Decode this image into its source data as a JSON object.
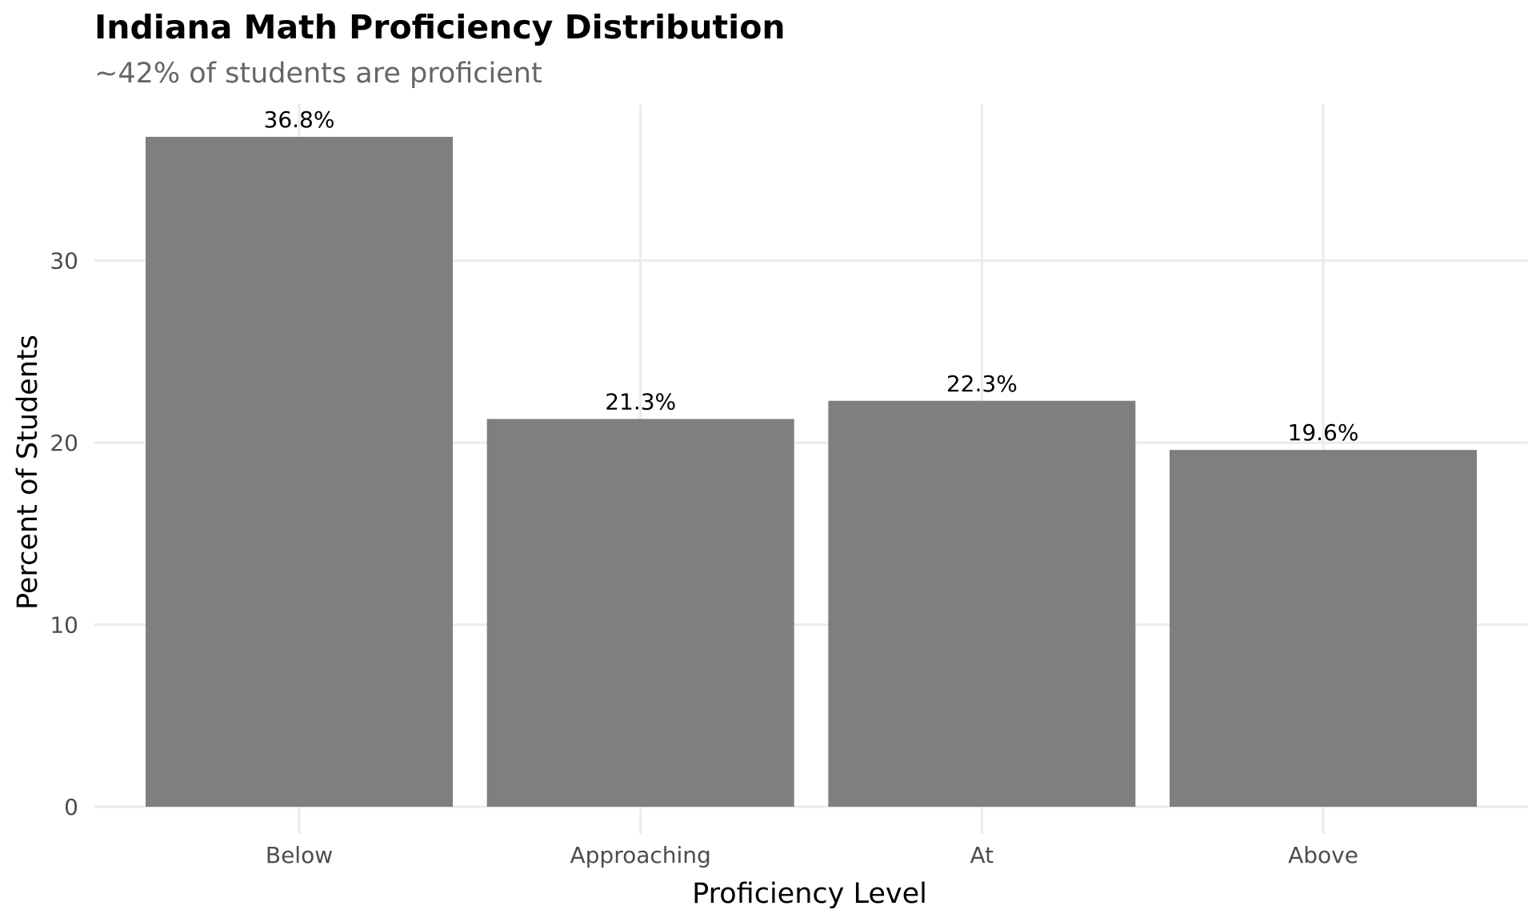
{
  "chart_data": {
    "type": "bar",
    "title": "Indiana Math Proficiency Distribution",
    "subtitle": "~42% of students are proficient",
    "xlabel": "Proficiency Level",
    "ylabel": "Percent of Students",
    "categories": [
      "Below",
      "Approaching",
      "At",
      "Above"
    ],
    "values": [
      36.8,
      21.3,
      22.3,
      19.6
    ],
    "data_labels": [
      "36.8%",
      "21.3%",
      "22.3%",
      "19.6%"
    ],
    "ylim": [
      0,
      38.6
    ],
    "yticks": [
      0,
      10,
      20,
      30
    ],
    "ytick_labels": [
      "0",
      "10",
      "20",
      "30"
    ],
    "grid": true,
    "legend": "none",
    "bar_color": "#7f7f7f",
    "grid_color": "#ebebeb"
  }
}
